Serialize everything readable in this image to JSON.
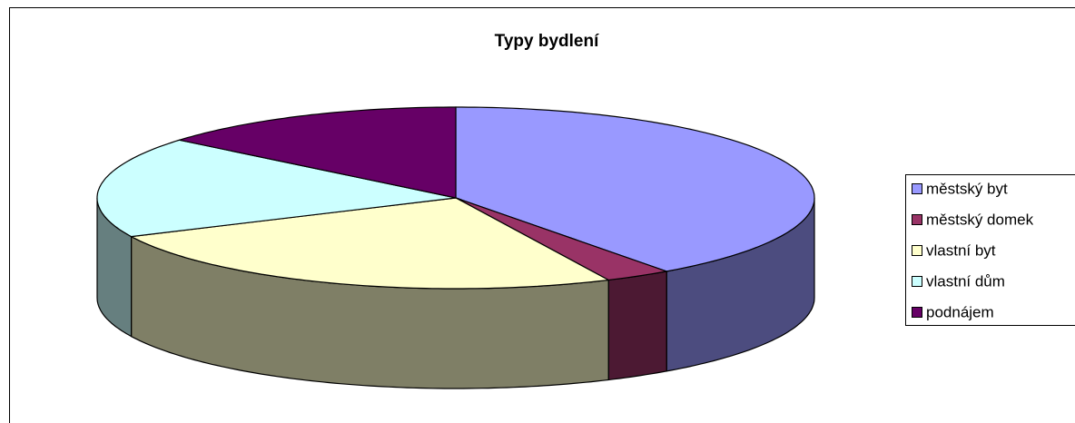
{
  "chart_data": {
    "type": "pie3d",
    "title": "Typy bydlení",
    "categories": [
      "městský byt",
      "městský domek",
      "vlastní byt",
      "vlastní dům",
      "podnájem"
    ],
    "values": [
      40,
      3,
      25,
      18,
      14
    ],
    "colors": [
      "#9999FF",
      "#993366",
      "#FFFFCC",
      "#CCFFFF",
      "#660066"
    ],
    "legend": "right"
  }
}
